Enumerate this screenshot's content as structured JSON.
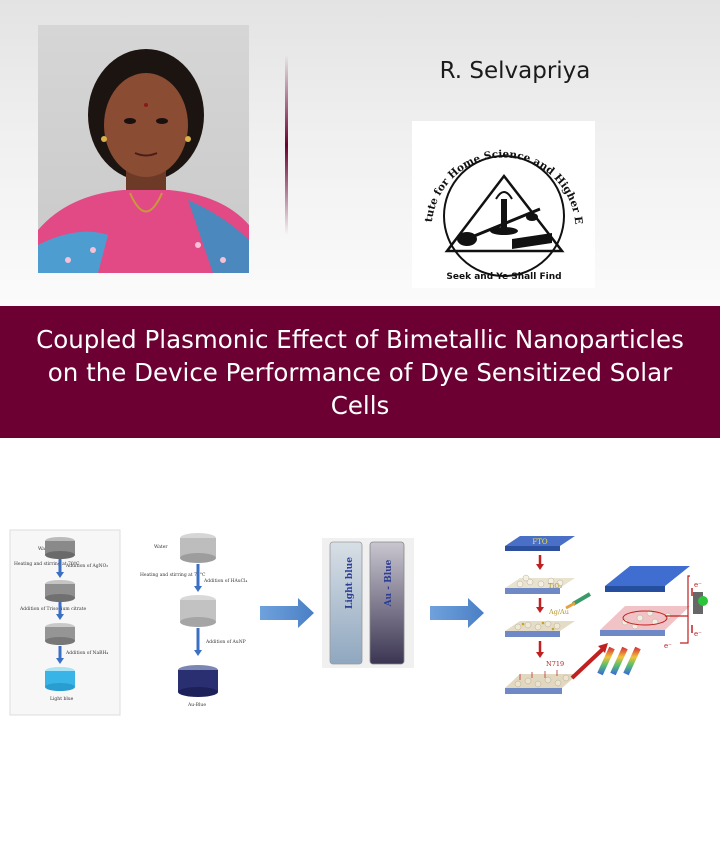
{
  "author": {
    "name": "R. Selvapriya"
  },
  "institution": {
    "name": "Avinashilingam Institute for Home Science and Higher Education for Women",
    "motto": "Seek and Ye Shall Find"
  },
  "paper": {
    "title": "Coupled Plasmonic Effect of Bimetallic Nanoparticles on the Device Performance of Dye Sensitized Solar Cells"
  },
  "graphical_abstract": {
    "panel1": {
      "labels": [
        "Water",
        "Heating and stirring at 70°C",
        "Addition of AgNO₃",
        "Addition of Trisodium citrate",
        "Addition of NaBH₄",
        "Light blue"
      ]
    },
    "panel2": {
      "labels": [
        "Water",
        "Heating and stirring at 70°C",
        "Addition of HAuCl₄",
        "Addition of AuNP",
        "Au-Blue"
      ]
    },
    "cuvettes": [
      "Light blue",
      "Au - Blue"
    ],
    "device": {
      "layers": [
        "FTO",
        "TiO₂",
        "Ag/Au",
        "N719"
      ],
      "electron_label": "e⁻"
    }
  }
}
